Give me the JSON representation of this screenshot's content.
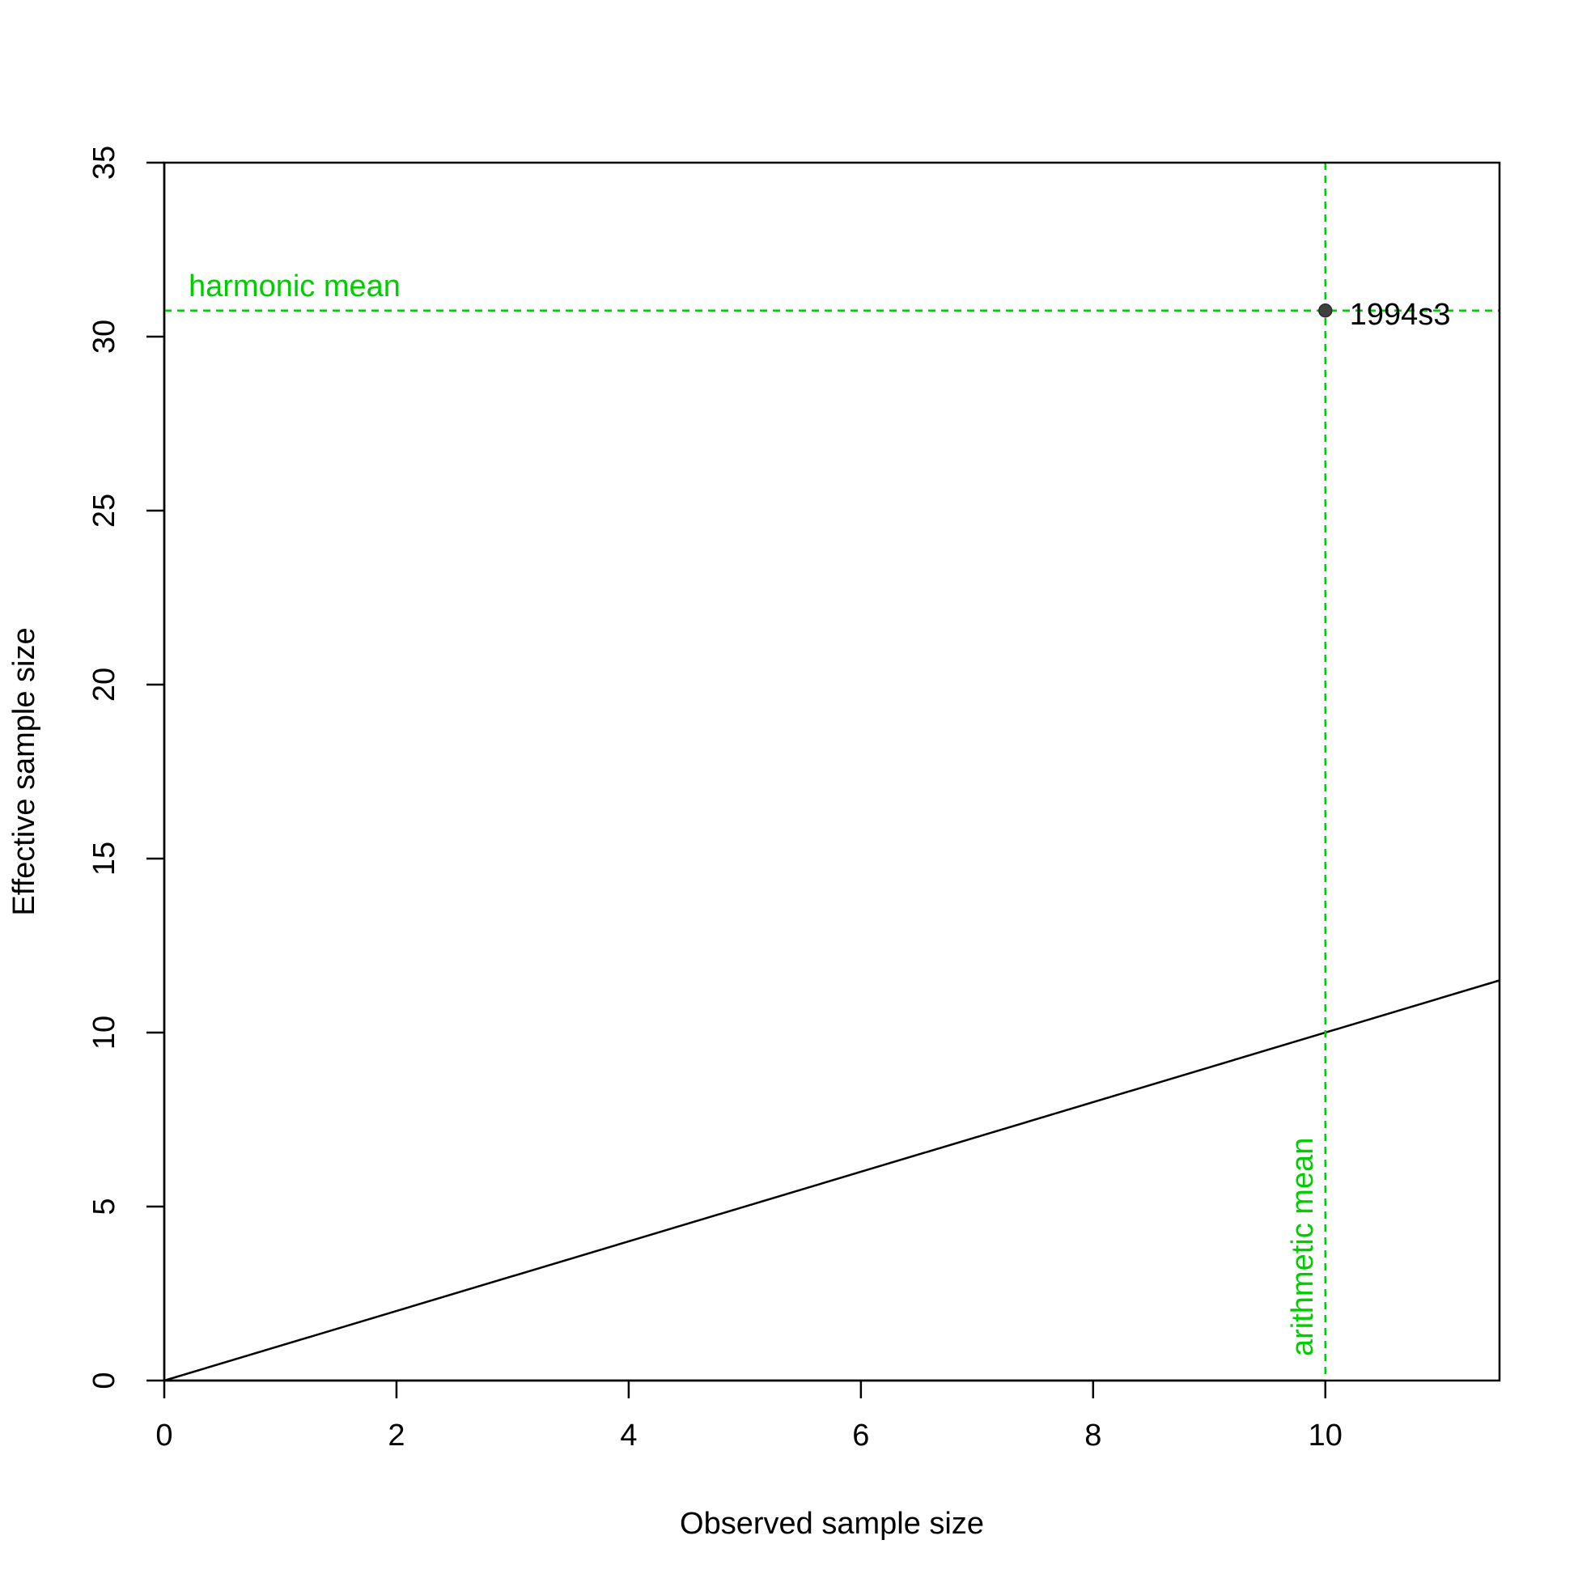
{
  "chart_data": {
    "type": "scatter",
    "title": "",
    "xlabel": "Observed sample size",
    "ylabel": "Effective sample size",
    "xlim": [
      0,
      11.5
    ],
    "ylim": [
      0,
      35
    ],
    "xticks": [
      0,
      2,
      4,
      6,
      8,
      10
    ],
    "yticks": [
      0,
      5,
      10,
      15,
      20,
      25,
      30,
      35
    ],
    "points": [
      {
        "label": "1994s3",
        "x": 10,
        "y": 30.75
      }
    ],
    "reference_line": {
      "type": "identity",
      "slope": 1,
      "intercept": 0
    },
    "harmonic_mean": {
      "label": "harmonic mean",
      "y": 30.75
    },
    "arithmetic_mean": {
      "label": "arithmetic mean",
      "x": 10
    },
    "grid": false,
    "colors": {
      "mean_lines": "#00cd00",
      "point_fill": "#404040",
      "axes": "#000000"
    }
  }
}
